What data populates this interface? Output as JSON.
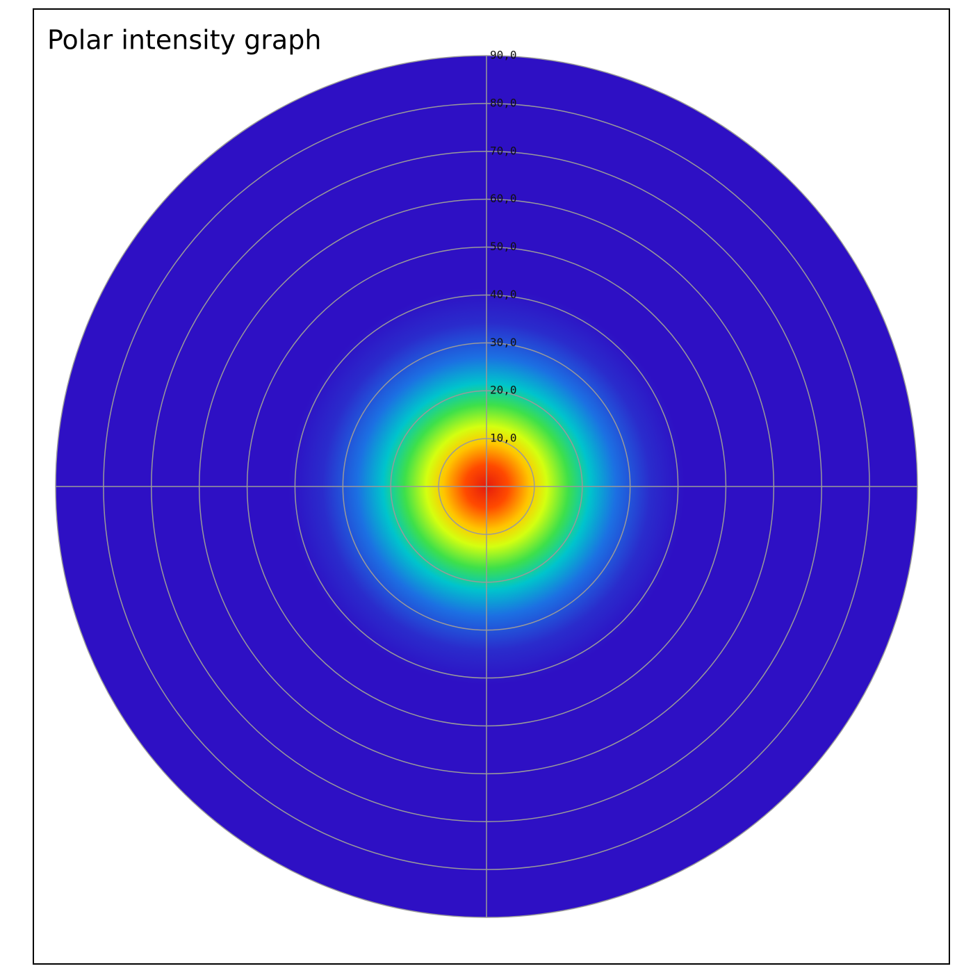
{
  "chart_data": {
    "type": "polar",
    "title": "Polar intensity graph",
    "rlim": [
      0,
      90
    ],
    "rticks": [
      {
        "value": 10,
        "label": "10,0"
      },
      {
        "value": 20,
        "label": "20,0"
      },
      {
        "value": 30,
        "label": "30,0"
      },
      {
        "value": 40,
        "label": "40,0"
      },
      {
        "value": 50,
        "label": "50,0"
      },
      {
        "value": 60,
        "label": "60,0"
      },
      {
        "value": 70,
        "label": "70,0"
      },
      {
        "value": 80,
        "label": "80,0"
      },
      {
        "value": 90,
        "label": "90,0"
      }
    ],
    "grid": true,
    "grid_color": "#9a9a9a"
  }
}
